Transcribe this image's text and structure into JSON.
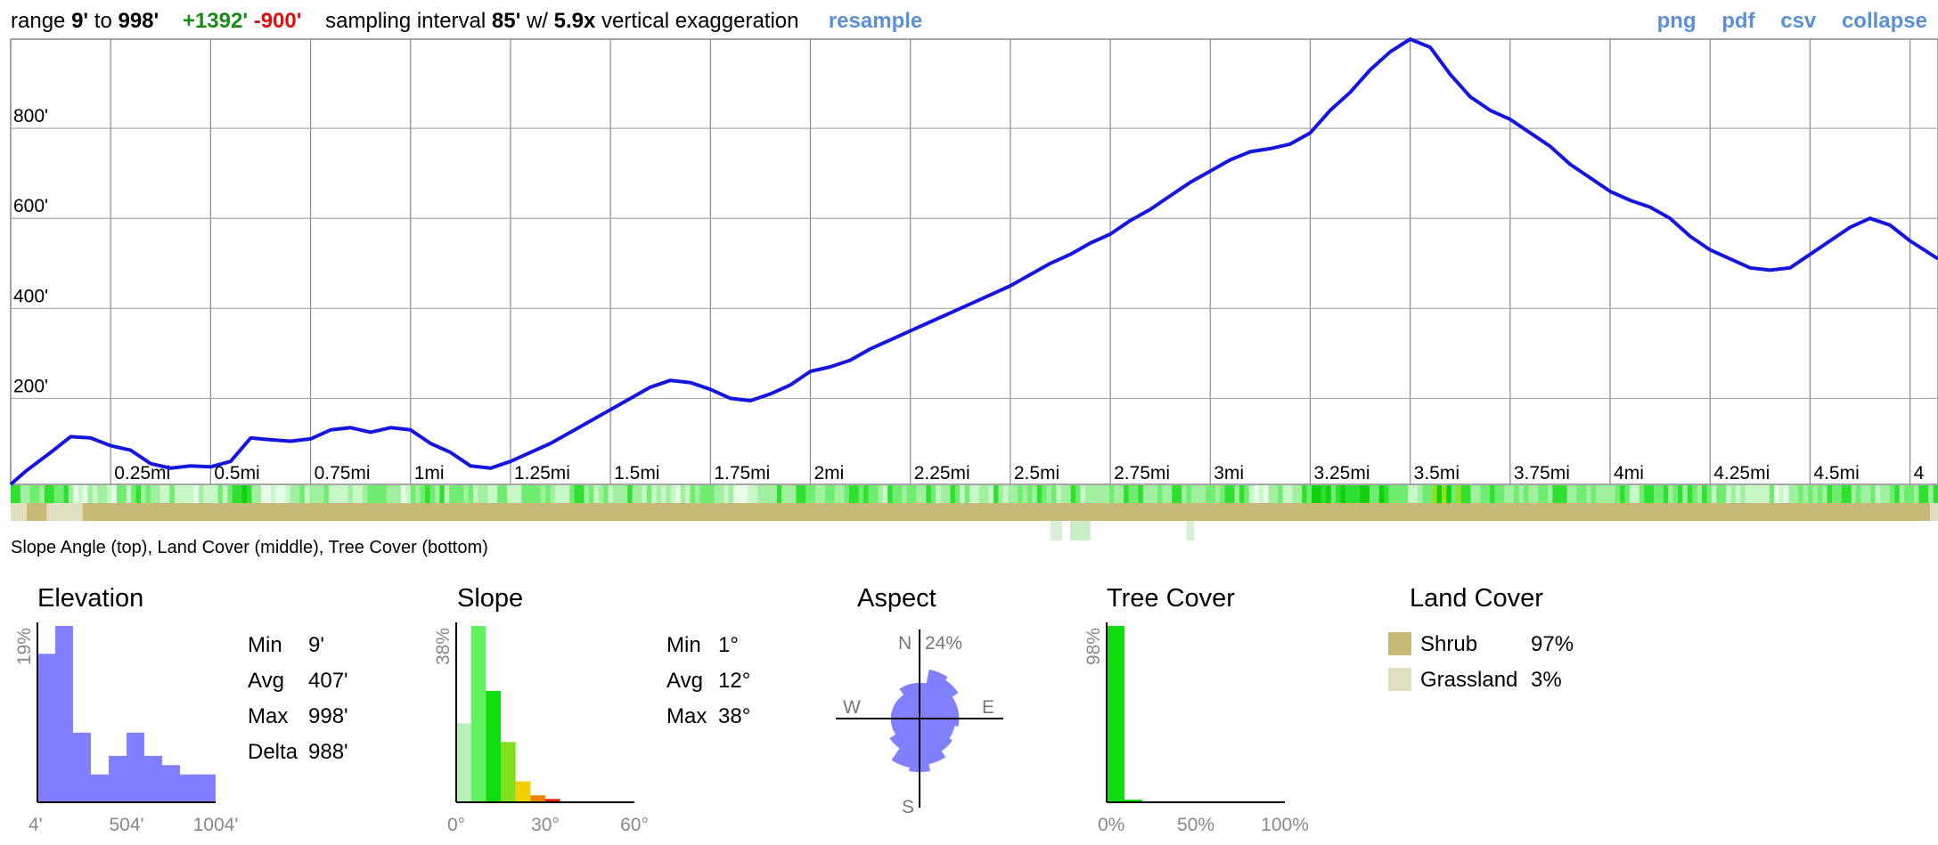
{
  "header": {
    "range_label": "range",
    "range_min": "9'",
    "range_to": "to",
    "range_max": "998'",
    "gain": "+1392'",
    "loss": "-900'",
    "interval_label": "sampling interval",
    "interval_value": "85'",
    "with_label": "w/",
    "exaggeration_value": "5.9x",
    "exaggeration_label": "vertical exaggeration",
    "resample_label": "resample",
    "links": [
      "png",
      "pdf",
      "csv",
      "collapse"
    ]
  },
  "caption": "Slope Angle (top), Land Cover (middle), Tree Cover (bottom)",
  "colors": {
    "line": "#1515e0",
    "hist": "#8080ff",
    "shrub": "#c8b878",
    "grassland": "#e0e0c0",
    "link": "#5b8fd6",
    "gain": "#1a8a1a",
    "loss": "#e01010"
  },
  "chart_data": [
    {
      "type": "line",
      "x_unit": "mi",
      "y_unit": "ft",
      "x_ticks": [
        "0.25mi",
        "0.5mi",
        "0.75mi",
        "1mi",
        "1.25mi",
        "1.5mi",
        "1.75mi",
        "2mi",
        "2.25mi",
        "2.5mi",
        "2.75mi",
        "3mi",
        "3.25mi",
        "3.5mi",
        "3.75mi",
        "4mi",
        "4.25mi",
        "4.5mi",
        "4"
      ],
      "y_ticks": [
        "200'",
        "400'",
        "600'",
        "800'"
      ],
      "xlim": [
        0,
        4.82
      ],
      "ylim": [
        9,
        998
      ],
      "x": [
        0,
        0.04,
        0.1,
        0.15,
        0.2,
        0.25,
        0.3,
        0.35,
        0.4,
        0.45,
        0.5,
        0.55,
        0.6,
        0.65,
        0.7,
        0.75,
        0.8,
        0.85,
        0.9,
        0.95,
        1.0,
        1.05,
        1.1,
        1.15,
        1.2,
        1.25,
        1.3,
        1.35,
        1.4,
        1.45,
        1.5,
        1.55,
        1.6,
        1.65,
        1.7,
        1.75,
        1.8,
        1.85,
        1.9,
        1.95,
        2.0,
        2.05,
        2.1,
        2.15,
        2.2,
        2.25,
        2.3,
        2.35,
        2.4,
        2.45,
        2.5,
        2.55,
        2.6,
        2.65,
        2.7,
        2.75,
        2.8,
        2.85,
        2.9,
        2.95,
        3.0,
        3.05,
        3.1,
        3.15,
        3.2,
        3.25,
        3.3,
        3.35,
        3.4,
        3.45,
        3.5,
        3.55,
        3.6,
        3.65,
        3.7,
        3.75,
        3.8,
        3.85,
        3.9,
        3.95,
        4.0,
        4.05,
        4.1,
        4.15,
        4.2,
        4.25,
        4.3,
        4.35,
        4.4,
        4.45,
        4.5,
        4.55,
        4.6,
        4.65,
        4.7,
        4.75,
        4.82
      ],
      "y": [
        9,
        40,
        80,
        115,
        112,
        95,
        85,
        55,
        45,
        50,
        48,
        60,
        112,
        108,
        105,
        110,
        130,
        135,
        125,
        135,
        130,
        100,
        80,
        50,
        45,
        60,
        80,
        100,
        125,
        150,
        175,
        200,
        225,
        240,
        235,
        220,
        200,
        195,
        210,
        230,
        260,
        270,
        285,
        310,
        330,
        350,
        370,
        390,
        410,
        430,
        450,
        475,
        500,
        520,
        545,
        565,
        595,
        620,
        650,
        680,
        705,
        730,
        748,
        755,
        765,
        790,
        840,
        880,
        930,
        970,
        998,
        980,
        920,
        870,
        840,
        820,
        790,
        760,
        720,
        690,
        660,
        640,
        625,
        600,
        560,
        530,
        510,
        490,
        485,
        490,
        520,
        550,
        580,
        600,
        585,
        550,
        510
      ]
    },
    {
      "type": "bar",
      "title": "Elevation",
      "y_axis_label": "19%",
      "x_ticks": [
        "4'",
        "504'",
        "1004'"
      ],
      "xlim": [
        4,
        1004
      ],
      "values": [
        16,
        19,
        7.5,
        3,
        5,
        7.5,
        5,
        4,
        3,
        3
      ],
      "stats": [
        {
          "label": "Min",
          "value": "9'"
        },
        {
          "label": "Avg",
          "value": "407'"
        },
        {
          "label": "Max",
          "value": "998'"
        },
        {
          "label": "Delta",
          "value": "988'"
        }
      ]
    },
    {
      "type": "bar",
      "title": "Slope",
      "y_axis_label": "38%",
      "x_ticks": [
        "0°",
        "30°",
        "60°"
      ],
      "xlim": [
        0,
        60
      ],
      "bin_width": 5,
      "values": [
        17,
        38,
        24,
        13,
        4.5,
        1.5,
        0.7,
        0.2
      ],
      "bin_colors": [
        "#b8f0b8",
        "#60f060",
        "#10dd10",
        "#80e020",
        "#f0d000",
        "#f08000",
        "#e02000",
        "#c00000"
      ],
      "stats": [
        {
          "label": "Min",
          "value": "1°"
        },
        {
          "label": "Avg",
          "value": "12°"
        },
        {
          "label": "Max",
          "value": "38°"
        }
      ]
    },
    {
      "type": "radar",
      "title": "Aspect",
      "max_label": "24%",
      "directions": [
        "N",
        "E",
        "S",
        "W"
      ],
      "sector_angles": [
        0,
        22.5,
        45,
        67.5,
        90,
        112.5,
        135,
        157.5,
        180,
        202.5,
        225,
        247.5,
        270,
        292.5,
        315,
        337.5
      ],
      "values": [
        10,
        14,
        13,
        11,
        11,
        10,
        11,
        13,
        15,
        14,
        10,
        8,
        8,
        8,
        8,
        10
      ]
    },
    {
      "type": "bar",
      "title": "Tree Cover",
      "y_axis_label": "98%",
      "x_ticks": [
        "0%",
        "50%",
        "100%"
      ],
      "xlim": [
        0,
        100
      ],
      "bin_width": 10,
      "values": [
        98,
        1.5,
        0.5,
        0,
        0,
        0,
        0,
        0,
        0,
        0
      ],
      "bar_color": "#10dd10"
    },
    {
      "type": "table",
      "title": "Land Cover",
      "rows": [
        {
          "name": "Shrub",
          "pct": "97%",
          "color": "#c8b878"
        },
        {
          "name": "Grassland",
          "pct": "3%",
          "color": "#e0e0c0"
        }
      ]
    }
  ]
}
